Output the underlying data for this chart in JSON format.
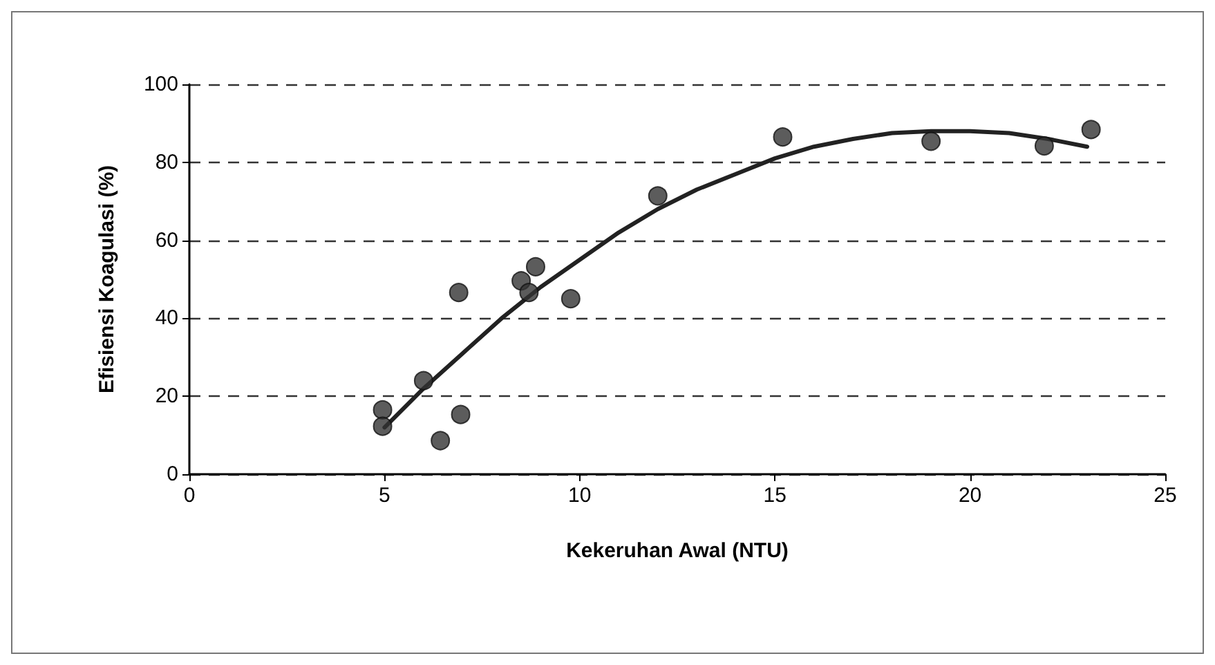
{
  "chart_data": {
    "type": "scatter",
    "xlabel": "Kekeruhan Awal (NTU)",
    "ylabel": "Efisiensi Koagulasi (%)",
    "xlim": [
      0,
      25
    ],
    "xticks": [
      0,
      5,
      10,
      15,
      20,
      25
    ],
    "ylim": [
      0,
      100
    ],
    "yticks": [
      0,
      20,
      40,
      60,
      80,
      100
    ],
    "grid": "y",
    "series": [
      {
        "color": "#333333",
        "marker": "circle",
        "x": [
          4.95,
          4.95,
          6.0,
          6.43,
          6.95,
          6.9,
          8.5,
          8.7,
          8.87,
          9.77,
          12.0,
          15.2,
          19.0,
          21.9,
          23.1
        ],
        "values": [
          16.5,
          12.3,
          24,
          8.6,
          15.3,
          46.6,
          49.6,
          46.6,
          53.2,
          45,
          71.4,
          86.5,
          85.4,
          84.2,
          88.4
        ]
      },
      {
        "type": "line",
        "color": "#222222",
        "marker": "none",
        "line_style": "solid",
        "x": [
          5,
          6,
          7,
          8,
          9,
          10,
          11,
          12,
          13,
          14,
          15,
          16,
          17,
          18,
          19,
          20,
          21,
          22,
          23
        ],
        "values": [
          12,
          22,
          31,
          40,
          48,
          55,
          62,
          68,
          73,
          77,
          81,
          84,
          86,
          87.5,
          88,
          88,
          87.5,
          86,
          84
        ]
      }
    ]
  }
}
